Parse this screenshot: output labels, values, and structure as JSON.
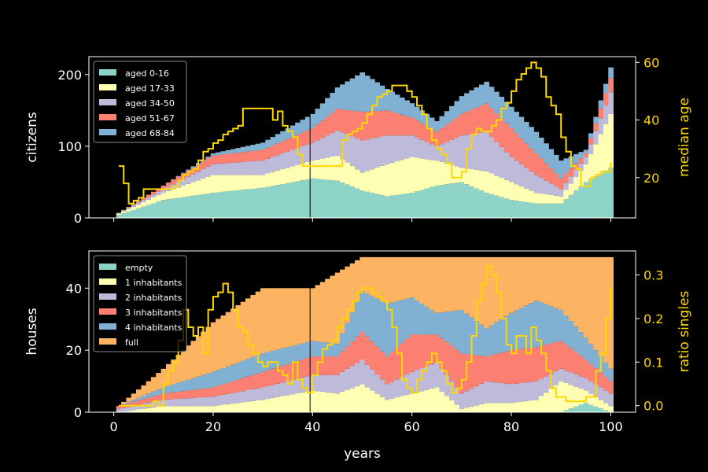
{
  "chart_data": [
    {
      "type": "area",
      "xlim": [
        -5,
        105
      ],
      "ylim": [
        0,
        225
      ],
      "ylabel": "citizens",
      "ylabel_right": "median age",
      "ylim_right": [
        6,
        62
      ],
      "yticks": [
        0,
        100,
        200
      ],
      "yticks_right": [
        20,
        40,
        60
      ],
      "legend_position": "upper-left",
      "vline_x": 39.5,
      "stack_x": [
        1,
        10,
        20,
        30,
        40,
        45,
        50,
        55,
        60,
        65,
        70,
        75,
        80,
        85,
        90,
        95,
        100
      ],
      "series": [
        {
          "name": "aged 0-16",
          "color": "#8dd3c7",
          "values": [
            4,
            25,
            35,
            42,
            55,
            52,
            38,
            30,
            35,
            45,
            50,
            35,
            25,
            20,
            20,
            50,
            70
          ]
        },
        {
          "name": "aged 17-33",
          "color": "#ffffb3",
          "values": [
            2,
            10,
            25,
            18,
            25,
            35,
            25,
            45,
            50,
            35,
            20,
            30,
            25,
            15,
            10,
            25,
            75
          ]
        },
        {
          "name": "aged 34-50",
          "color": "#bebada",
          "values": [
            1,
            5,
            15,
            20,
            25,
            35,
            45,
            40,
            30,
            20,
            45,
            55,
            35,
            25,
            10,
            10,
            30
          ]
        },
        {
          "name": "aged 51-67",
          "color": "#fb8072",
          "values": [
            0,
            5,
            12,
            15,
            20,
            30,
            40,
            35,
            25,
            20,
            30,
            40,
            40,
            30,
            15,
            5,
            20
          ]
        },
        {
          "name": "aged 68-84",
          "color": "#80b1d3",
          "values": [
            0,
            0,
            3,
            10,
            20,
            30,
            55,
            30,
            20,
            15,
            25,
            30,
            30,
            30,
            25,
            5,
            15
          ]
        }
      ],
      "line": {
        "name": "median age",
        "color": "#ffd700",
        "x": [
          1,
          2,
          3,
          4,
          5,
          6,
          11,
          12,
          13,
          14,
          15,
          16,
          17,
          18,
          19,
          20,
          21,
          22,
          23,
          24,
          25,
          26,
          31,
          32,
          33,
          34,
          35,
          36,
          37,
          38,
          39,
          40,
          45,
          46,
          47,
          48,
          49,
          50,
          51,
          52,
          53,
          54,
          55,
          56,
          57,
          58,
          59,
          60,
          61,
          62,
          63,
          64,
          65,
          66,
          67,
          68,
          69,
          70,
          71,
          72,
          73,
          74,
          75,
          76,
          77,
          78,
          79,
          80,
          81,
          82,
          83,
          84,
          85,
          86,
          87,
          88,
          89,
          90,
          91,
          92,
          93,
          94,
          95,
          96,
          97,
          98,
          99,
          100
        ],
        "y": [
          24,
          18,
          11,
          12,
          13,
          16,
          16,
          17,
          19,
          21,
          22,
          23,
          26,
          29,
          30,
          32,
          33,
          35,
          36,
          37,
          38,
          44,
          44,
          40,
          43,
          38,
          36,
          34,
          28,
          24,
          24,
          24,
          24,
          33,
          35,
          36,
          37,
          39,
          42,
          45,
          48,
          49,
          50,
          52,
          52,
          52,
          50,
          48,
          45,
          42,
          37,
          33,
          30,
          28,
          25,
          20,
          20,
          22,
          30,
          35,
          37,
          36,
          36,
          38,
          40,
          44,
          46,
          50,
          54,
          56,
          58,
          60,
          58,
          55,
          48,
          45,
          42,
          34,
          29,
          24,
          23,
          17,
          17,
          20,
          21,
          22,
          22,
          25
        ]
      }
    },
    {
      "type": "area",
      "xlim": [
        -5,
        105
      ],
      "ylim": [
        0,
        52
      ],
      "ylabel": "houses",
      "xlabel": "years",
      "ylabel_right": "ratio singles",
      "ylim_right": [
        -0.015,
        0.355
      ],
      "yticks": [
        0,
        20,
        40
      ],
      "yticks_right": [
        0.0,
        0.1,
        0.2,
        0.3
      ],
      "yticklabels_right": [
        "0.0",
        "0.1",
        "0.2",
        "0.3"
      ],
      "xticks": [
        0,
        20,
        40,
        60,
        80,
        100
      ],
      "legend_position": "upper-left",
      "vline_x": 39.5,
      "stack_x": [
        1,
        10,
        20,
        30,
        40,
        45,
        50,
        55,
        60,
        65,
        70,
        75,
        80,
        85,
        90,
        95,
        100
      ],
      "series": [
        {
          "name": "empty",
          "color": "#8dd3c7",
          "values": [
            0,
            0,
            0,
            0,
            0,
            0,
            0,
            0,
            0,
            0,
            0,
            0,
            0,
            0,
            0,
            3,
            0
          ]
        },
        {
          "name": "1 inhabitants",
          "color": "#ffffb3",
          "values": [
            0,
            2,
            2,
            4,
            7,
            6,
            9,
            4,
            6,
            8,
            1,
            3,
            3,
            4,
            10,
            4,
            2
          ]
        },
        {
          "name": "2 inhabitants",
          "color": "#bebada",
          "values": [
            1,
            2,
            3,
            4,
            5,
            6,
            8,
            5,
            7,
            8,
            5,
            7,
            6,
            6,
            4,
            4,
            4
          ]
        },
        {
          "name": "3 inhabitants",
          "color": "#fb8072",
          "values": [
            1,
            2,
            3,
            5,
            6,
            6,
            9,
            9,
            12,
            9,
            13,
            8,
            11,
            11,
            9,
            6,
            4
          ]
        },
        {
          "name": "4 inhabitants",
          "color": "#80b1d3",
          "values": [
            0,
            2,
            5,
            6,
            5,
            4,
            13,
            17,
            12,
            7,
            14,
            9,
            12,
            15,
            10,
            7,
            4
          ]
        },
        {
          "name": "full",
          "color": "#fdb462",
          "values": [
            0,
            6,
            16,
            21,
            17,
            23,
            11,
            15,
            13,
            18,
            17,
            23,
            18,
            14,
            17,
            26,
            36
          ]
        }
      ],
      "line": {
        "name": "ratio singles",
        "color": "#ffd700",
        "x": [
          1,
          2,
          3,
          4,
          5,
          6,
          7,
          8,
          9,
          10,
          11,
          12,
          13,
          14,
          15,
          16,
          17,
          18,
          19,
          20,
          21,
          22,
          23,
          24,
          25,
          26,
          27,
          28,
          29,
          30,
          31,
          32,
          33,
          34,
          35,
          36,
          37,
          38,
          39,
          40,
          41,
          42,
          43,
          44,
          45,
          46,
          47,
          48,
          49,
          50,
          51,
          52,
          53,
          54,
          55,
          56,
          57,
          58,
          59,
          60,
          61,
          62,
          63,
          64,
          65,
          66,
          67,
          68,
          69,
          70,
          71,
          72,
          73,
          74,
          75,
          76,
          77,
          78,
          79,
          80,
          81,
          82,
          83,
          84,
          85,
          86,
          87,
          88,
          89,
          90,
          91,
          92,
          93,
          94,
          95,
          96,
          97,
          98,
          99,
          100
        ],
        "y": [
          0.0,
          0.0,
          0.0,
          0.0,
          0.0,
          0.0,
          0.0,
          0.01,
          0.0,
          0.05,
          0.08,
          0.1,
          0.15,
          0.22,
          0.18,
          0.16,
          0.18,
          0.12,
          0.22,
          0.25,
          0.26,
          0.28,
          0.26,
          0.22,
          0.18,
          0.17,
          0.14,
          0.12,
          0.1,
          0.09,
          0.1,
          0.1,
          0.08,
          0.07,
          0.05,
          0.1,
          0.06,
          0.04,
          0.03,
          0.07,
          0.1,
          0.13,
          0.14,
          0.15,
          0.18,
          0.2,
          0.22,
          0.24,
          0.26,
          0.27,
          0.27,
          0.26,
          0.25,
          0.24,
          0.22,
          0.18,
          0.12,
          0.06,
          0.04,
          0.03,
          0.06,
          0.08,
          0.1,
          0.12,
          0.1,
          0.08,
          0.05,
          0.03,
          0.04,
          0.06,
          0.1,
          0.16,
          0.24,
          0.28,
          0.32,
          0.3,
          0.26,
          0.2,
          0.14,
          0.12,
          0.16,
          0.16,
          0.12,
          0.18,
          0.15,
          0.12,
          0.08,
          0.04,
          0.02,
          0.02,
          0.01,
          0.01,
          0.01,
          0.01,
          0.02,
          0.02,
          0.08,
          0.12,
          0.2,
          0.27
        ]
      }
    }
  ]
}
